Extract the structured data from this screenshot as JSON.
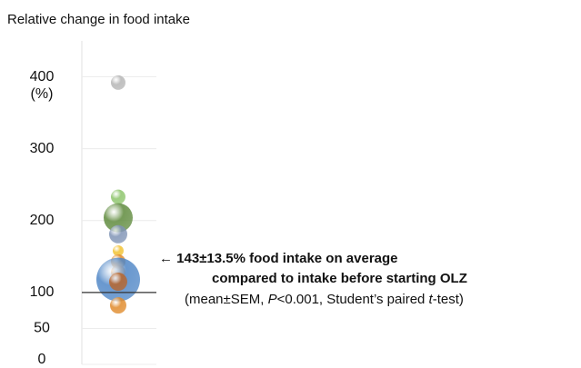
{
  "chart_data": {
    "type": "bubble",
    "title": "Relative change in food intake",
    "y_unit_label": "(%)",
    "ylim": [
      0,
      450
    ],
    "yticks": [
      0,
      50,
      100,
      200,
      300,
      400
    ],
    "grid": true,
    "reference_line": 100,
    "points": {
      "values": [
        392,
        233,
        204,
        181,
        158,
        143,
        128,
        118,
        115,
        82
      ],
      "sizes": [
        8,
        8,
        16,
        10,
        6,
        8,
        8,
        24,
        10,
        9
      ],
      "colors": [
        "#b5b5b5",
        "#8cc46a",
        "#5e8a3c",
        "#7f93b5",
        "#f2c230",
        "#e08a2a",
        "#d9822b",
        "#4f86c6",
        "#b9652a",
        "#e08a2a"
      ]
    },
    "annotation": [
      [
        {
          "text": "← 143±13.5% food intake on average",
          "italic": false
        }
      ],
      [
        {
          "text": "compared to intake before starting OLZ",
          "italic": false
        }
      ],
      [
        {
          "text": "(mean±SEM, ",
          "italic": false
        },
        {
          "text": "P",
          "italic": true
        },
        {
          "text": "<0.001, Student’s paired ",
          "italic": false
        },
        {
          "text": "t",
          "italic": true
        },
        {
          "text": "-test)",
          "italic": false
        }
      ]
    ]
  }
}
